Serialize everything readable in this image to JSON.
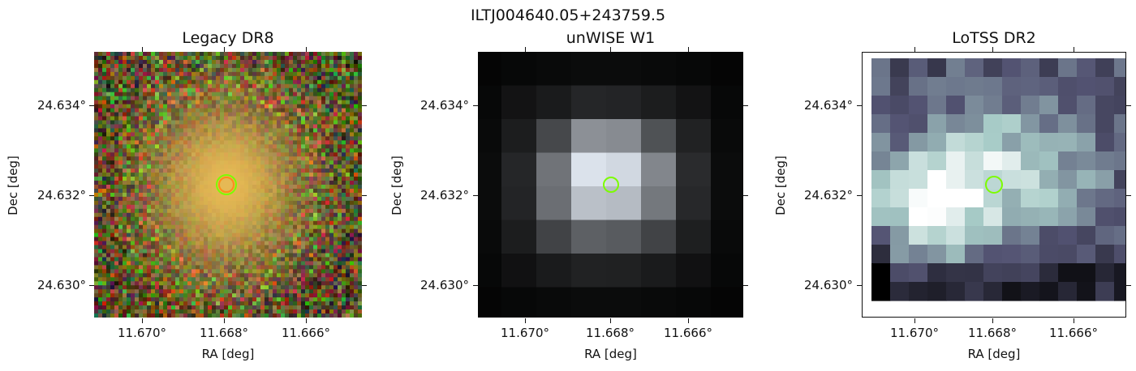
{
  "figure_title": "ILTJ004640.05+243759.5",
  "panels": [
    {
      "id": "legacy",
      "title": "Legacy DR8",
      "xlabel": "RA [deg]",
      "ylabel": "Dec [deg]",
      "xticks": [
        "11.670°",
        "11.668°",
        "11.666°"
      ],
      "yticks": [
        "24.634°",
        "24.632°",
        "24.630°"
      ],
      "image": "color optical cutout, diffuse orange elliptical galaxy in noisy RGB background"
    },
    {
      "id": "unwise",
      "title": "unWISE W1",
      "xlabel": "RA [deg]",
      "ylabel": "Dec [deg]",
      "xticks": [
        "11.670°",
        "11.668°",
        "11.666°"
      ],
      "yticks": [
        "24.634°",
        "24.632°",
        "24.630°"
      ],
      "image": "grayscale infrared cutout, coarse pixels, bright central source"
    },
    {
      "id": "lotss",
      "title": "LoTSS DR2",
      "xlabel": "RA [deg]",
      "ylabel": "Dec [deg]",
      "xticks": [
        "11.670°",
        "11.668°",
        "11.666°"
      ],
      "yticks": [
        "24.634°",
        "24.632°",
        "24.630°"
      ],
      "image": "bone-colormap radio cutout, extended blotchy emission"
    }
  ],
  "marker_color": "#7CFC00"
}
